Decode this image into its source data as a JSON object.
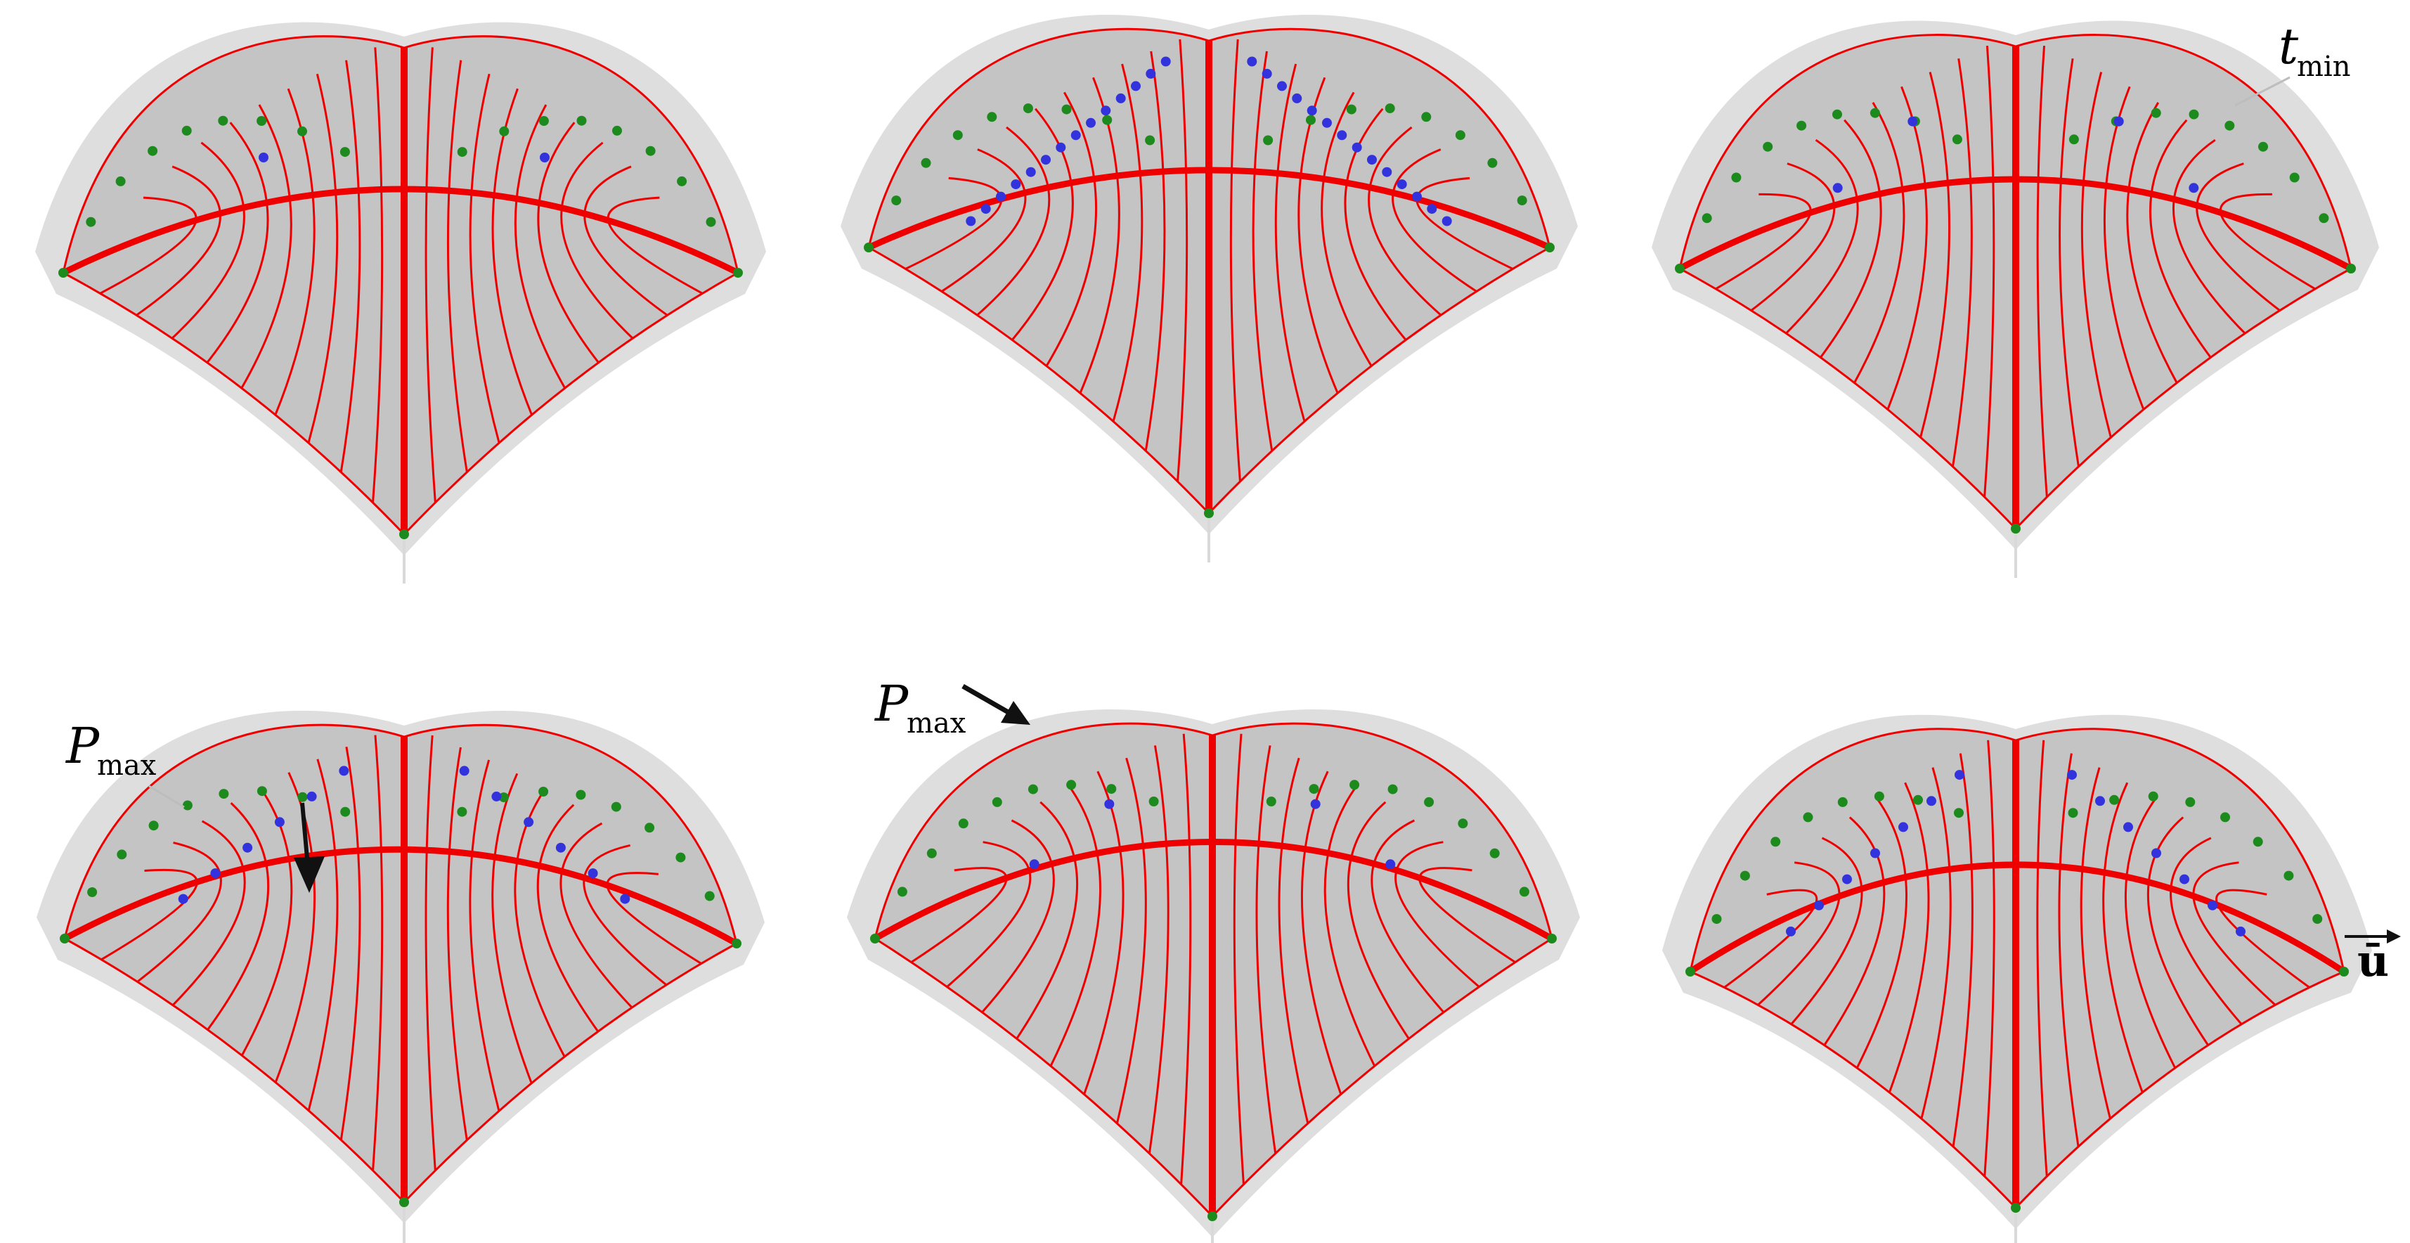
{
  "figure": {
    "panels": [
      {
        "id": "top-left",
        "blue_count": 2
      },
      {
        "id": "top-middle",
        "blue_count": 28
      },
      {
        "id": "top-right",
        "blue_count": 4
      },
      {
        "id": "bottom-left",
        "blue_count": 12
      },
      {
        "id": "bottom-middle",
        "blue_count": 4
      },
      {
        "id": "bottom-right",
        "blue_count": 14
      }
    ],
    "annotations": {
      "t_min": {
        "main": "t",
        "sub": "min"
      },
      "p_max_left": {
        "main": "P",
        "sub": "max"
      },
      "p_max_middle": {
        "main": "P",
        "sub": "max"
      },
      "u_vector": {
        "text": "ū"
      }
    },
    "colors": {
      "surface": "#c4c4c4",
      "surface_shadow": "#dedede",
      "curve": "#ee0000",
      "node_green": "#1d8a1d",
      "node_blue": "#3333dd",
      "arrow": "#111111"
    }
  }
}
